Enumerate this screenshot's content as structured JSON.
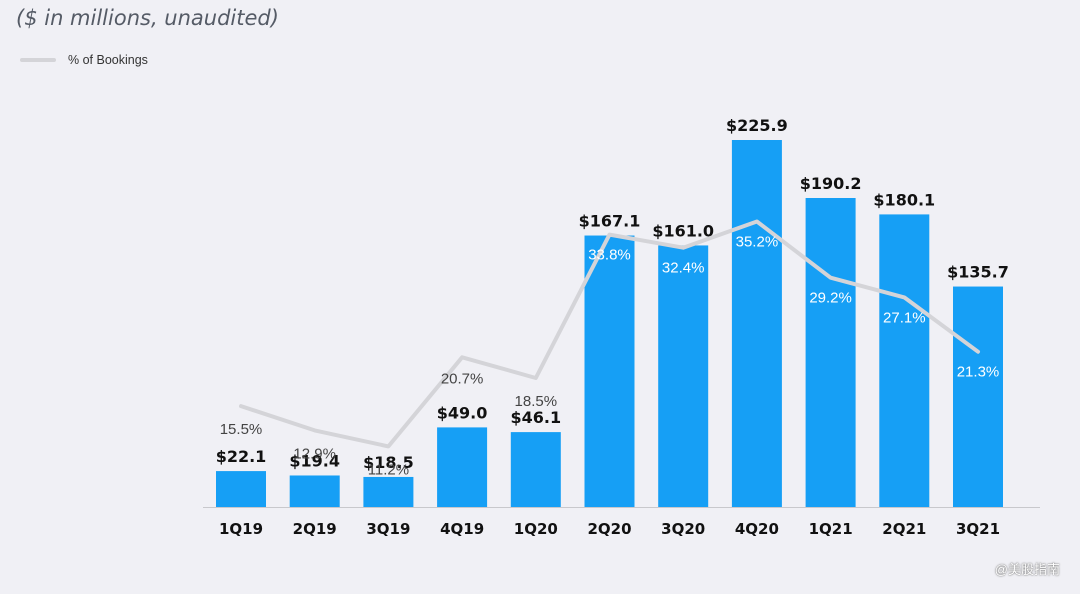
{
  "subtitle": "($ in millions,  unaudited)",
  "legend": {
    "label": "% of Bookings"
  },
  "watermark": "@美股指南",
  "colors": {
    "bar": "#169ff5",
    "line": "#d4d4d8",
    "bar_label": "#111111",
    "pct_outside": "#444444",
    "pct_inside": "#ffffff",
    "axis": "#c8c8cc"
  },
  "chart_data": {
    "type": "bar",
    "categories": [
      "1Q19",
      "2Q19",
      "3Q19",
      "4Q19",
      "1Q20",
      "2Q20",
      "3Q20",
      "4Q20",
      "1Q21",
      "2Q21",
      "3Q21"
    ],
    "series": [
      {
        "name": "",
        "values": [
          22.1,
          19.4,
          18.5,
          49.0,
          46.1,
          167.1,
          161.0,
          225.9,
          190.2,
          180.1,
          135.7
        ],
        "labels": [
          "$22.1",
          "$19.4",
          "$18.5",
          "$49.0",
          "$46.1",
          "$167.1",
          "$161.0",
          "$225.9",
          "$190.2",
          "$180.1",
          "$135.7"
        ]
      },
      {
        "name": "% of Bookings",
        "type": "line",
        "values": [
          15.5,
          12.9,
          11.2,
          20.7,
          18.5,
          33.8,
          32.4,
          35.2,
          29.2,
          27.1,
          21.3
        ],
        "labels": [
          "15.5%",
          "12.9%",
          "11.2%",
          "20.7%",
          "18.5%",
          "33.8%",
          "32.4%",
          "35.2%",
          "29.2%",
          "27.1%",
          "21.3%"
        ]
      }
    ],
    "ylim": [
      0,
      230
    ],
    "grid": false,
    "legend_position": "top-left"
  }
}
